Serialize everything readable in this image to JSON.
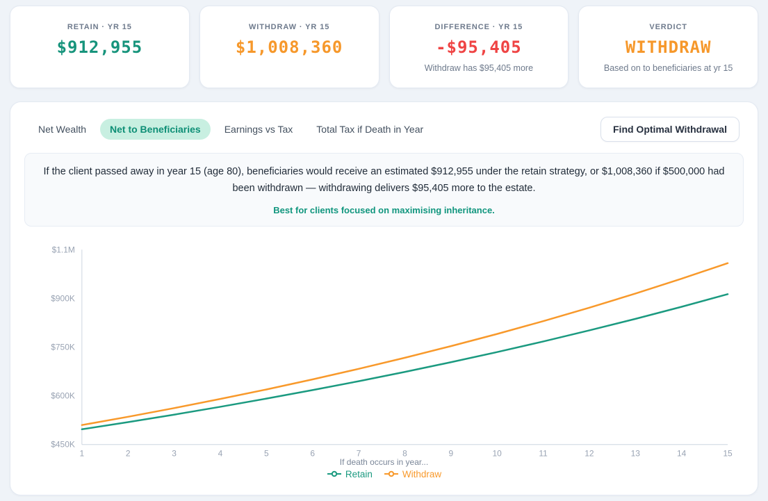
{
  "theme": {
    "teal": "#17947c",
    "orange": "#f6982b",
    "red": "#ef4444",
    "active_tab_bg": "#c8efe1",
    "axis_line": "#ccd5e0",
    "axis_text": "#99a3b3"
  },
  "cards": [
    {
      "label": "RETAIN · YR 15",
      "value": "$912,955",
      "color": "#17947c",
      "sub": ""
    },
    {
      "label": "WITHDRAW · YR 15",
      "value": "$1,008,360",
      "color": "#f6982b",
      "sub": ""
    },
    {
      "label": "DIFFERENCE · YR 15",
      "value": "-$95,405",
      "color": "#ef4444",
      "sub": "Withdraw has $95,405 more"
    },
    {
      "label": "VERDICT",
      "value": "WITHDRAW",
      "color": "#f6982b",
      "sub": "Based on to beneficiaries at yr 15"
    }
  ],
  "tabs": {
    "items": [
      {
        "label": "Net Wealth",
        "active": false
      },
      {
        "label": "Net to Beneficiaries",
        "active": true
      },
      {
        "label": "Earnings vs Tax",
        "active": false
      },
      {
        "label": "Total Tax if Death in Year",
        "active": false
      }
    ]
  },
  "toolbar": {
    "find_optimal_label": "Find Optimal Withdrawal"
  },
  "insight": {
    "text": "If the client passed away in year 15 (age 80), beneficiaries would receive an estimated $912,955 under the retain strategy, or $1,008,360 if $500,000 had been withdrawn — withdrawing delivers $95,405 more to the estate.",
    "note": "Best for clients focused on maximising inheritance."
  },
  "chart_data": {
    "type": "line",
    "x": [
      1,
      2,
      3,
      4,
      5,
      6,
      7,
      8,
      9,
      10,
      11,
      12,
      13,
      14,
      15
    ],
    "xlabel": "If death occurs in year...",
    "ylabel": "",
    "ylim": [
      450000,
      1050000
    ],
    "y_ticks": [
      {
        "label": "$450K",
        "value": 450000
      },
      {
        "label": "$600K",
        "value": 600000
      },
      {
        "label": "$750K",
        "value": 750000
      },
      {
        "label": "$900K",
        "value": 900000
      },
      {
        "label": "$1.1M",
        "value": 1050000
      }
    ],
    "grid": false,
    "legend_position": "bottom",
    "series": [
      {
        "name": "Retain",
        "color": "#1b9a80",
        "values": [
          496954,
          519019,
          542063,
          566130,
          591266,
          617518,
          644935,
          673569,
          703476,
          734710,
          767331,
          801400,
          836982,
          874143,
          912955
        ]
      },
      {
        "name": "Withdraw",
        "color": "#f8992b",
        "values": [
          509970,
          535418,
          562136,
          590187,
          619637,
          650557,
          683019,
          717102,
          752885,
          790454,
          829897,
          871308,
          914786,
          960434,
          1008360
        ]
      }
    ]
  }
}
